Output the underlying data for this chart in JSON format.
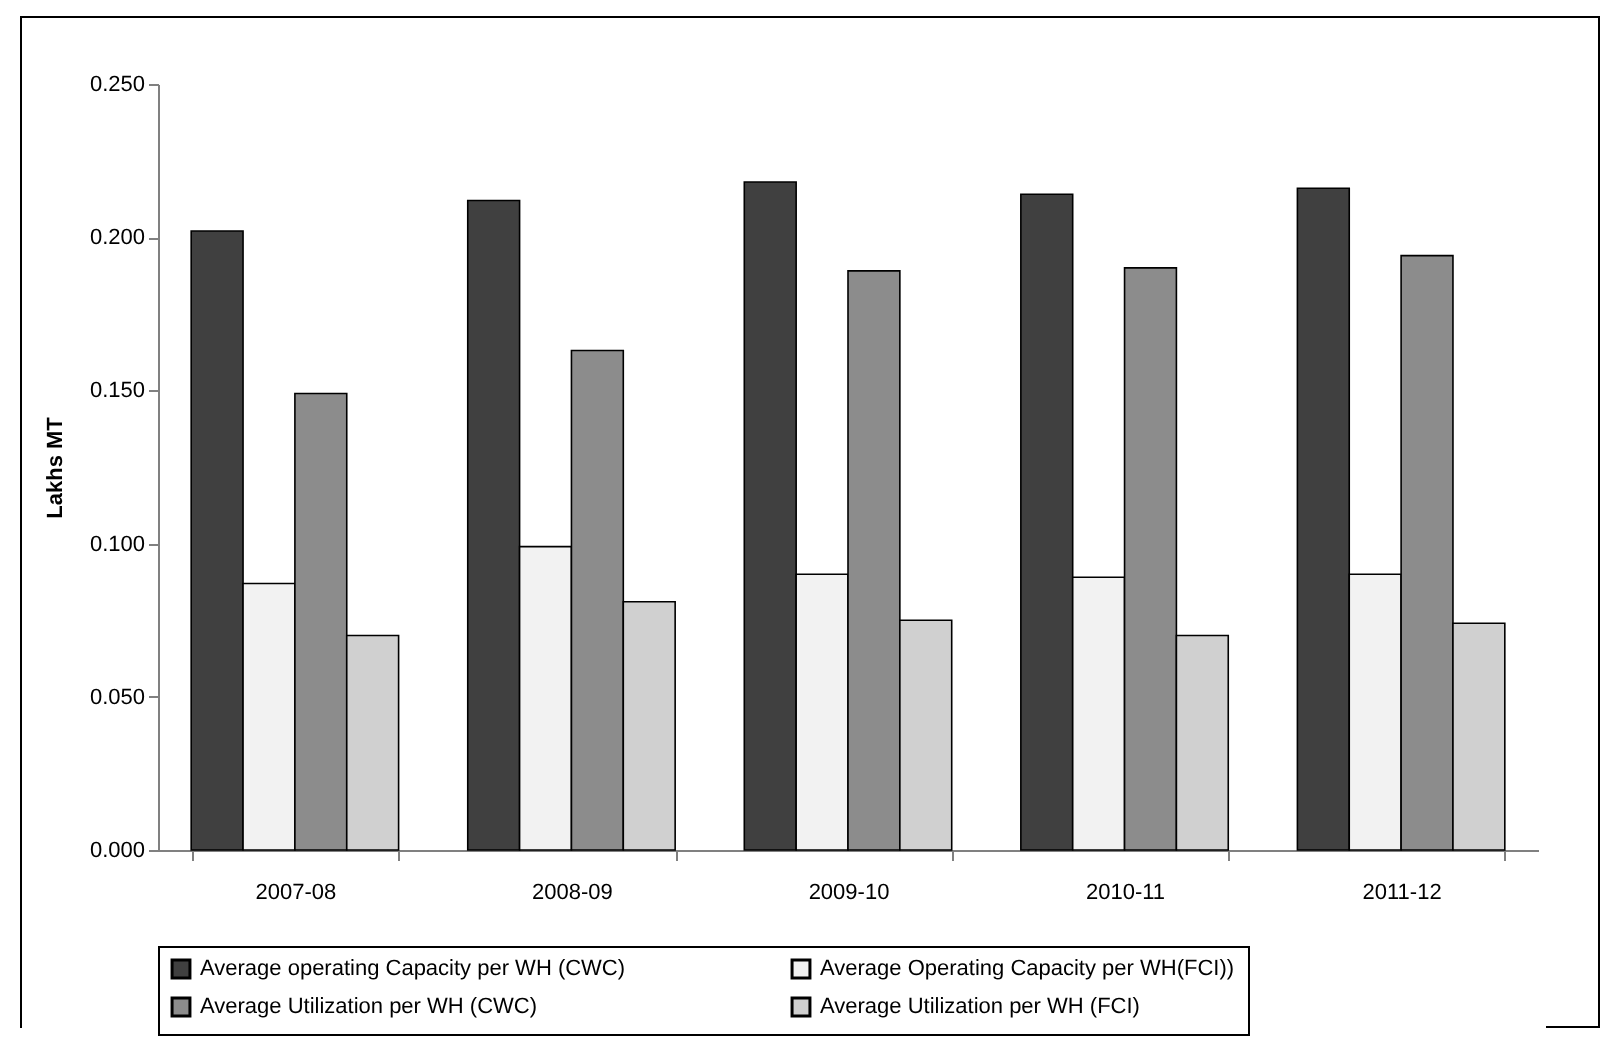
{
  "chart_data": {
    "type": "bar",
    "ylabel": "Lakhs MT",
    "categories": [
      "2007-08",
      "2008-09",
      "2009-10",
      "2010-11",
      "2011-12"
    ],
    "series": [
      {
        "name": "Average operating Capacity per WH (CWC)",
        "color": "#404040",
        "values": [
          0.202,
          0.212,
          0.218,
          0.214,
          0.216
        ]
      },
      {
        "name": "Average Operating Capacity per WH(FCI))",
        "color": "#f2f2f2",
        "values": [
          0.087,
          0.099,
          0.09,
          0.089,
          0.09
        ]
      },
      {
        "name": "Average Utilization per WH (CWC)",
        "color": "#8c8c8c",
        "values": [
          0.149,
          0.163,
          0.189,
          0.19,
          0.194
        ]
      },
      {
        "name": "Average Utilization per WH (FCI)",
        "color": "#d0d0d0",
        "values": [
          0.07,
          0.081,
          0.075,
          0.07,
          0.074
        ]
      }
    ],
    "ylim": [
      0,
      0.25
    ],
    "yticks": [
      {
        "value": 0,
        "label": "0.000"
      },
      {
        "value": 0.05,
        "label": "0.050"
      },
      {
        "value": 0.1,
        "label": "0.100"
      },
      {
        "value": 0.15,
        "label": "0.150"
      },
      {
        "value": 0.2,
        "label": "0.200"
      },
      {
        "value": 0.25,
        "label": "0.250"
      }
    ],
    "grid": false,
    "legend": "bottom"
  }
}
